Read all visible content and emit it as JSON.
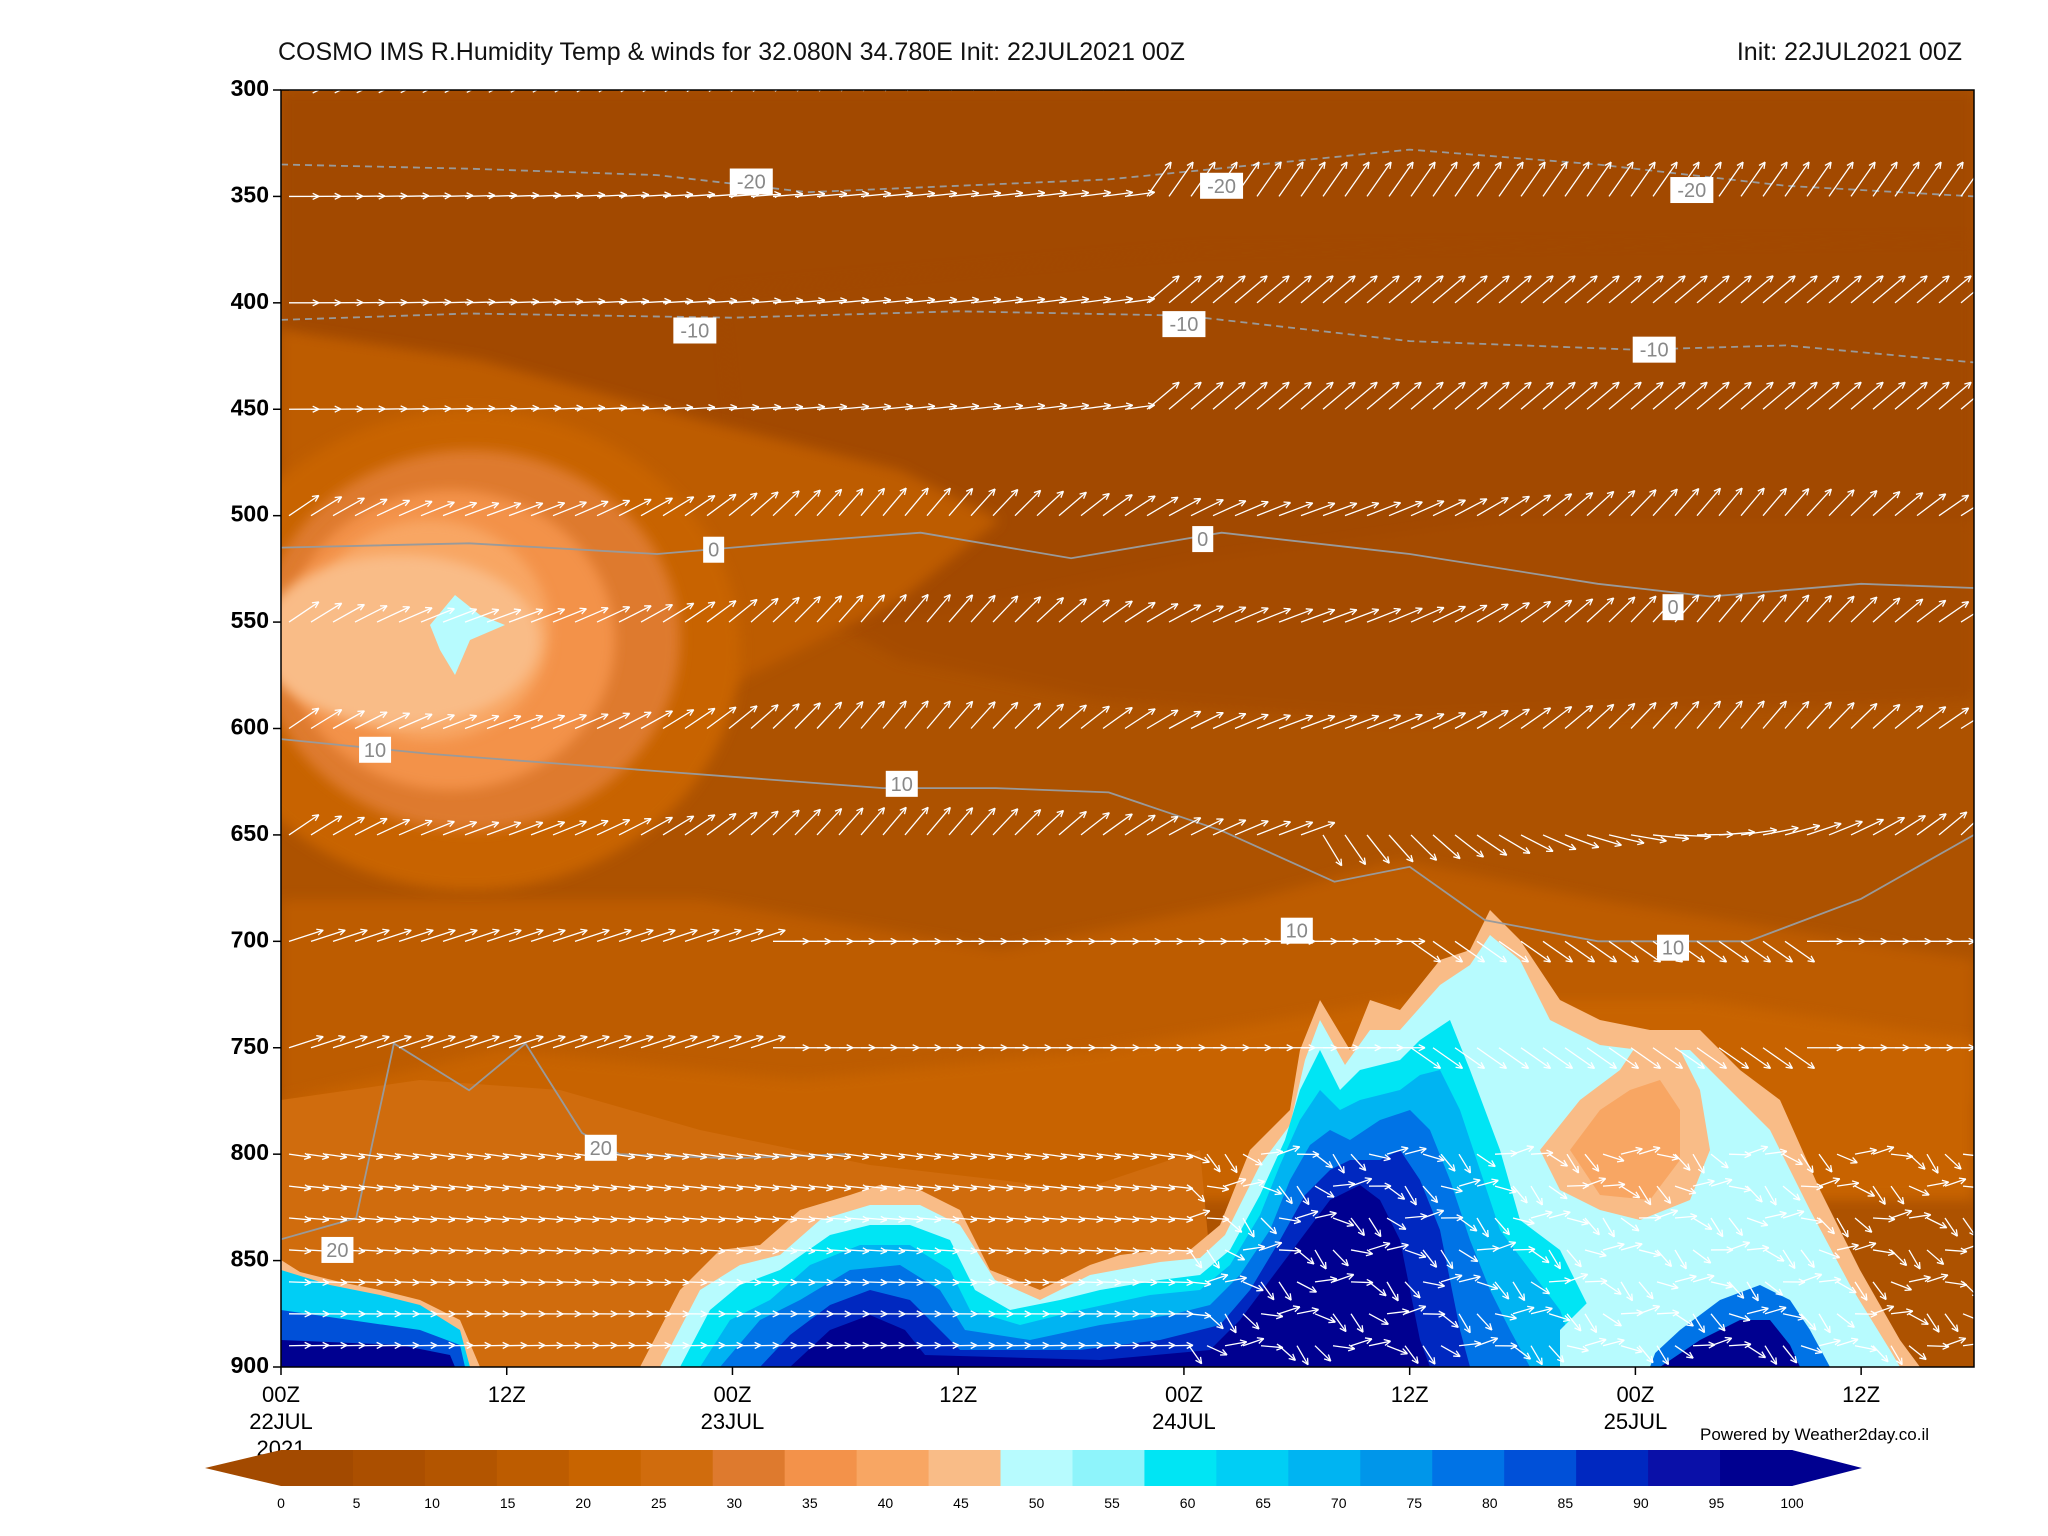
{
  "title": "COSMO IMS R.Humidity Temp & winds for 32.080N 34.780E Init: 22JUL2021 00Z",
  "init_label": "Init: 22JUL2021 00Z",
  "powered_by": "Powered by Weather2day.co.il",
  "chart_data": {
    "type": "heatmap",
    "title": "COSMO IMS R.Humidity Temp & winds for 32.080N 34.780E Init: 22JUL2021 00Z",
    "y_axis": {
      "ticks": [
        300,
        350,
        400,
        450,
        500,
        550,
        600,
        650,
        700,
        750,
        800,
        850,
        900
      ],
      "range": [
        300,
        900
      ],
      "reversed": true
    },
    "x_axis": {
      "ticks": [
        {
          "hour": 0,
          "label": "00Z",
          "sub": "22JUL",
          "sub2": "2021"
        },
        {
          "hour": 12,
          "label": "12Z",
          "sub": "",
          "sub2": ""
        },
        {
          "hour": 24,
          "label": "00Z",
          "sub": "23JUL",
          "sub2": ""
        },
        {
          "hour": 36,
          "label": "12Z",
          "sub": "",
          "sub2": ""
        },
        {
          "hour": 48,
          "label": "00Z",
          "sub": "24JUL",
          "sub2": ""
        },
        {
          "hour": 60,
          "label": "12Z",
          "sub": "",
          "sub2": ""
        },
        {
          "hour": 72,
          "label": "00Z",
          "sub": "25JUL",
          "sub2": ""
        },
        {
          "hour": 84,
          "label": "12Z",
          "sub": "",
          "sub2": ""
        }
      ],
      "range": [
        0,
        90
      ]
    },
    "colorbar": {
      "labels": [
        "0",
        "5",
        "10",
        "15",
        "20",
        "25",
        "30",
        "35",
        "40",
        "45",
        "50",
        "55",
        "60",
        "65",
        "70",
        "75",
        "80",
        "85",
        "90",
        "95",
        "100"
      ],
      "colors": [
        "#a34a00",
        "#ab4f00",
        "#b35500",
        "#bd5c00",
        "#c86400",
        "#d06c0d",
        "#de7a2e",
        "#f3924a",
        "#f8a663",
        "#f9bc87",
        "#b7fbfe",
        "#8ef4fb",
        "#00e5f4",
        "#00cef5",
        "#00b4f2",
        "#0096ea",
        "#0073e6",
        "#0050d8",
        "#0028c0",
        "#0a10a8",
        "#000090"
      ]
    },
    "isotherms": [
      {
        "label": "-20",
        "points": [
          [
            0,
            335
          ],
          [
            10,
            337
          ],
          [
            20,
            340
          ],
          [
            28,
            348
          ],
          [
            36,
            345
          ],
          [
            44,
            342
          ],
          [
            52,
            335
          ],
          [
            60,
            328
          ],
          [
            70,
            335
          ],
          [
            80,
            345
          ],
          [
            90,
            350
          ]
        ],
        "dashed": true,
        "labels_at": [
          [
            25,
            343
          ],
          [
            50,
            345
          ],
          [
            75,
            347
          ]
        ]
      },
      {
        "label": "-10",
        "points": [
          [
            0,
            408
          ],
          [
            10,
            405
          ],
          [
            24,
            407
          ],
          [
            36,
            404
          ],
          [
            48,
            406
          ],
          [
            60,
            418
          ],
          [
            72,
            422
          ],
          [
            80,
            420
          ],
          [
            90,
            428
          ]
        ],
        "dashed": true,
        "labels_at": [
          [
            22,
            413
          ],
          [
            48,
            410
          ],
          [
            73,
            422
          ]
        ]
      },
      {
        "label": "0",
        "points": [
          [
            0,
            515
          ],
          [
            10,
            513
          ],
          [
            20,
            518
          ],
          [
            28,
            512
          ],
          [
            34,
            508
          ],
          [
            42,
            520
          ],
          [
            50,
            508
          ],
          [
            60,
            518
          ],
          [
            70,
            532
          ],
          [
            76,
            538
          ],
          [
            84,
            532
          ],
          [
            90,
            534
          ]
        ],
        "dashed": false,
        "labels_at": [
          [
            23,
            516
          ],
          [
            49,
            511
          ],
          [
            74,
            543
          ]
        ]
      },
      {
        "label": "10",
        "points": [
          [
            0,
            605
          ],
          [
            8,
            612
          ],
          [
            20,
            620
          ],
          [
            32,
            628
          ],
          [
            38,
            628
          ],
          [
            44,
            630
          ],
          [
            50,
            648
          ],
          [
            56,
            672
          ],
          [
            60,
            665
          ],
          [
            64,
            690
          ],
          [
            70,
            700
          ],
          [
            78,
            700
          ],
          [
            84,
            680
          ],
          [
            90,
            650
          ]
        ],
        "dashed": false,
        "labels_at": [
          [
            5,
            610
          ],
          [
            33,
            626
          ],
          [
            54,
            695
          ],
          [
            74,
            703
          ]
        ]
      },
      {
        "label": "20",
        "points": [
          [
            0,
            840
          ],
          [
            4,
            830
          ],
          [
            6,
            748
          ],
          [
            10,
            770
          ],
          [
            13,
            748
          ],
          [
            16,
            790
          ],
          [
            18,
            800
          ],
          [
            24,
            802
          ],
          [
            30,
            800
          ]
        ],
        "dashed": false,
        "labels_at": [
          [
            3,
            845
          ],
          [
            17,
            797
          ]
        ]
      }
    ],
    "wind_levels": [
      300,
      350,
      400,
      450,
      500,
      550,
      600,
      650,
      700,
      750,
      800,
      815,
      830,
      845,
      860,
      875,
      890
    ]
  }
}
